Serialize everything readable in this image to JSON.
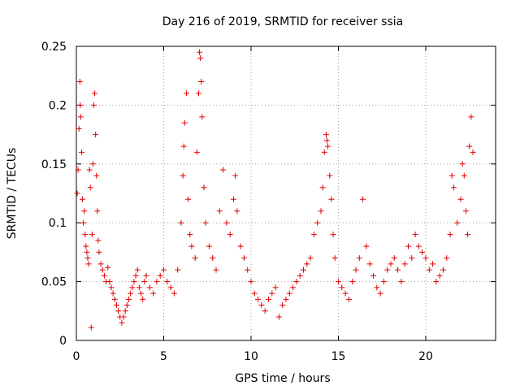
{
  "chart_data": {
    "type": "scatter",
    "title": "Day 216 of 2019, SRMTID for receiver ssia",
    "xlabel": "GPS time / hours",
    "ylabel": "SRMTID / TECUs",
    "xlim": [
      0,
      24
    ],
    "ylim": [
      0,
      0.25
    ],
    "xticks": [
      0,
      5,
      10,
      15,
      20
    ],
    "xtick_labels": [
      "0",
      "5",
      "10",
      "15",
      "20"
    ],
    "yticks": [
      0,
      0.05,
      0.1,
      0.15,
      0.2,
      0.25
    ],
    "ytick_labels": [
      "0",
      "0.05",
      "0.1",
      "0.15",
      "0.2",
      "0.25"
    ],
    "grid": true,
    "marker": "+",
    "series": [
      {
        "name": "SRMTID",
        "color": "#e00000",
        "points": [
          [
            0.05,
            0.125
          ],
          [
            0.1,
            0.145
          ],
          [
            0.15,
            0.18
          ],
          [
            0.2,
            0.22
          ],
          [
            0.22,
            0.2
          ],
          [
            0.25,
            0.19
          ],
          [
            0.3,
            0.16
          ],
          [
            0.35,
            0.12
          ],
          [
            0.4,
            0.1
          ],
          [
            0.45,
            0.11
          ],
          [
            0.5,
            0.09
          ],
          [
            0.55,
            0.08
          ],
          [
            0.6,
            0.075
          ],
          [
            0.65,
            0.07
          ],
          [
            0.7,
            0.065
          ],
          [
            0.75,
            0.145
          ],
          [
            0.8,
            0.13
          ],
          [
            0.85,
            0.011
          ],
          [
            0.9,
            0.09
          ],
          [
            0.95,
            0.15
          ],
          [
            1.0,
            0.2
          ],
          [
            1.05,
            0.21
          ],
          [
            1.1,
            0.175
          ],
          [
            1.15,
            0.14
          ],
          [
            1.2,
            0.11
          ],
          [
            1.25,
            0.085
          ],
          [
            1.3,
            0.075
          ],
          [
            1.4,
            0.065
          ],
          [
            1.5,
            0.06
          ],
          [
            1.6,
            0.055
          ],
          [
            1.7,
            0.05
          ],
          [
            1.8,
            0.062
          ],
          [
            1.9,
            0.05
          ],
          [
            2.0,
            0.045
          ],
          [
            2.1,
            0.04
          ],
          [
            2.2,
            0.035
          ],
          [
            2.3,
            0.03
          ],
          [
            2.4,
            0.025
          ],
          [
            2.5,
            0.02
          ],
          [
            2.6,
            0.015
          ],
          [
            2.7,
            0.02
          ],
          [
            2.8,
            0.025
          ],
          [
            2.9,
            0.03
          ],
          [
            3.0,
            0.035
          ],
          [
            3.1,
            0.04
          ],
          [
            3.2,
            0.045
          ],
          [
            3.3,
            0.05
          ],
          [
            3.4,
            0.055
          ],
          [
            3.5,
            0.06
          ],
          [
            3.6,
            0.045
          ],
          [
            3.7,
            0.04
          ],
          [
            3.8,
            0.035
          ],
          [
            3.9,
            0.05
          ],
          [
            4.0,
            0.055
          ],
          [
            4.2,
            0.045
          ],
          [
            4.4,
            0.04
          ],
          [
            4.6,
            0.05
          ],
          [
            4.8,
            0.055
          ],
          [
            5.0,
            0.06
          ],
          [
            5.2,
            0.05
          ],
          [
            5.4,
            0.045
          ],
          [
            5.6,
            0.04
          ],
          [
            5.8,
            0.06
          ],
          [
            6.0,
            0.1
          ],
          [
            6.1,
            0.14
          ],
          [
            6.15,
            0.165
          ],
          [
            6.2,
            0.185
          ],
          [
            6.3,
            0.21
          ],
          [
            6.4,
            0.12
          ],
          [
            6.5,
            0.09
          ],
          [
            6.6,
            0.08
          ],
          [
            6.8,
            0.07
          ],
          [
            6.9,
            0.16
          ],
          [
            7.0,
            0.21
          ],
          [
            7.05,
            0.245
          ],
          [
            7.1,
            0.24
          ],
          [
            7.15,
            0.22
          ],
          [
            7.2,
            0.19
          ],
          [
            7.3,
            0.13
          ],
          [
            7.4,
            0.1
          ],
          [
            7.6,
            0.08
          ],
          [
            7.8,
            0.07
          ],
          [
            8.0,
            0.06
          ],
          [
            8.2,
            0.11
          ],
          [
            8.4,
            0.145
          ],
          [
            8.6,
            0.1
          ],
          [
            8.8,
            0.09
          ],
          [
            9.0,
            0.12
          ],
          [
            9.1,
            0.14
          ],
          [
            9.2,
            0.11
          ],
          [
            9.4,
            0.08
          ],
          [
            9.6,
            0.07
          ],
          [
            9.8,
            0.06
          ],
          [
            10.0,
            0.05
          ],
          [
            10.2,
            0.04
          ],
          [
            10.4,
            0.035
          ],
          [
            10.6,
            0.03
          ],
          [
            10.8,
            0.025
          ],
          [
            11.0,
            0.035
          ],
          [
            11.2,
            0.04
          ],
          [
            11.4,
            0.045
          ],
          [
            11.6,
            0.02
          ],
          [
            11.8,
            0.03
          ],
          [
            12.0,
            0.035
          ],
          [
            12.2,
            0.04
          ],
          [
            12.4,
            0.045
          ],
          [
            12.6,
            0.05
          ],
          [
            12.8,
            0.055
          ],
          [
            13.0,
            0.06
          ],
          [
            13.2,
            0.065
          ],
          [
            13.4,
            0.07
          ],
          [
            13.6,
            0.09
          ],
          [
            13.8,
            0.1
          ],
          [
            14.0,
            0.11
          ],
          [
            14.1,
            0.13
          ],
          [
            14.2,
            0.16
          ],
          [
            14.3,
            0.175
          ],
          [
            14.35,
            0.17
          ],
          [
            14.4,
            0.165
          ],
          [
            14.5,
            0.14
          ],
          [
            14.6,
            0.12
          ],
          [
            14.7,
            0.09
          ],
          [
            14.8,
            0.07
          ],
          [
            15.0,
            0.05
          ],
          [
            15.2,
            0.045
          ],
          [
            15.4,
            0.04
          ],
          [
            15.6,
            0.035
          ],
          [
            15.8,
            0.05
          ],
          [
            16.0,
            0.06
          ],
          [
            16.2,
            0.07
          ],
          [
            16.4,
            0.12
          ],
          [
            16.6,
            0.08
          ],
          [
            16.8,
            0.065
          ],
          [
            17.0,
            0.055
          ],
          [
            17.2,
            0.045
          ],
          [
            17.4,
            0.04
          ],
          [
            17.6,
            0.05
          ],
          [
            17.8,
            0.06
          ],
          [
            18.0,
            0.065
          ],
          [
            18.2,
            0.07
          ],
          [
            18.4,
            0.06
          ],
          [
            18.6,
            0.05
          ],
          [
            18.8,
            0.065
          ],
          [
            19.0,
            0.08
          ],
          [
            19.2,
            0.07
          ],
          [
            19.4,
            0.09
          ],
          [
            19.6,
            0.08
          ],
          [
            19.8,
            0.075
          ],
          [
            20.0,
            0.07
          ],
          [
            20.2,
            0.06
          ],
          [
            20.4,
            0.065
          ],
          [
            20.6,
            0.05
          ],
          [
            20.8,
            0.055
          ],
          [
            21.0,
            0.06
          ],
          [
            21.2,
            0.07
          ],
          [
            21.4,
            0.09
          ],
          [
            21.5,
            0.14
          ],
          [
            21.6,
            0.13
          ],
          [
            21.8,
            0.1
          ],
          [
            22.0,
            0.12
          ],
          [
            22.1,
            0.15
          ],
          [
            22.2,
            0.14
          ],
          [
            22.3,
            0.11
          ],
          [
            22.4,
            0.09
          ],
          [
            22.5,
            0.165
          ],
          [
            22.6,
            0.19
          ],
          [
            22.7,
            0.16
          ]
        ]
      }
    ]
  }
}
